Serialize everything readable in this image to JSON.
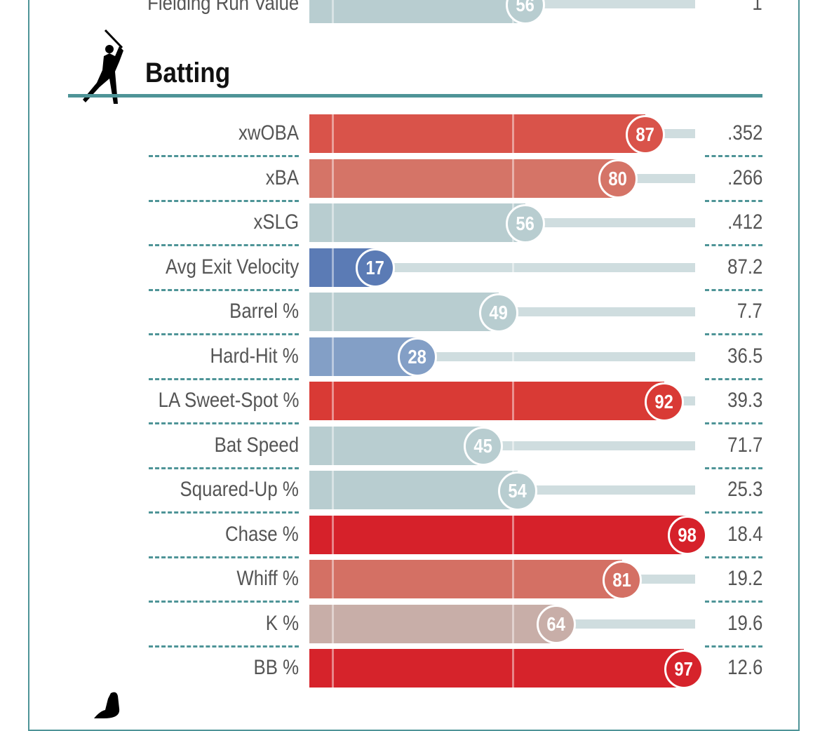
{
  "section_title": "Batting",
  "chart_data": {
    "type": "bar",
    "title": "Batting",
    "xlim": [
      0,
      100
    ],
    "previous_row": {
      "label": "Fielding Run Value",
      "percentile": 56,
      "value": "1",
      "color": "#b8cdd0"
    },
    "rows": [
      {
        "label": "xwOBA",
        "percentile": 87,
        "value": ".352",
        "color": "#d9534a"
      },
      {
        "label": "xBA",
        "percentile": 80,
        "value": ".266",
        "color": "#d57467"
      },
      {
        "label": "xSLG",
        "percentile": 56,
        "value": ".412",
        "color": "#b8cdd0"
      },
      {
        "label": "Avg Exit Velocity",
        "percentile": 17,
        "value": "87.2",
        "color": "#5b7bb5"
      },
      {
        "label": "Barrel %",
        "percentile": 49,
        "value": "7.7",
        "color": "#b8cdd0"
      },
      {
        "label": "Hard-Hit %",
        "percentile": 28,
        "value": "36.5",
        "color": "#839fc6"
      },
      {
        "label": "LA Sweet-Spot %",
        "percentile": 92,
        "value": "39.3",
        "color": "#d93a35"
      },
      {
        "label": "Bat Speed",
        "percentile": 45,
        "value": "71.7",
        "color": "#b8cdd0"
      },
      {
        "label": "Squared-Up %",
        "percentile": 54,
        "value": "25.3",
        "color": "#b8cdd0"
      },
      {
        "label": "Chase %",
        "percentile": 98,
        "value": "18.4",
        "color": "#d6212a"
      },
      {
        "label": "Whiff %",
        "percentile": 81,
        "value": "19.2",
        "color": "#d47064"
      },
      {
        "label": "K %",
        "percentile": 64,
        "value": "19.6",
        "color": "#c8aea8"
      },
      {
        "label": "BB %",
        "percentile": 97,
        "value": "12.6",
        "color": "#d6232b"
      }
    ]
  }
}
